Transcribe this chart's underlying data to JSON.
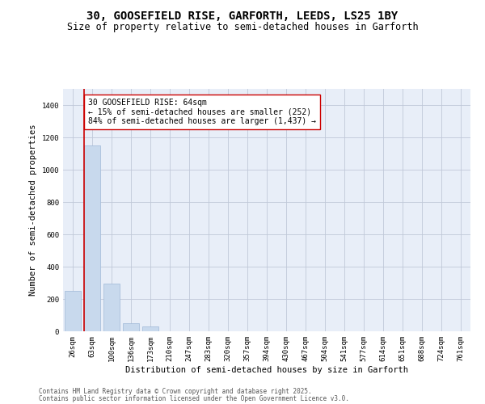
{
  "title_line1": "30, GOOSEFIELD RISE, GARFORTH, LEEDS, LS25 1BY",
  "title_line2": "Size of property relative to semi-detached houses in Garforth",
  "xlabel": "Distribution of semi-detached houses by size in Garforth",
  "ylabel": "Number of semi-detached properties",
  "categories": [
    "26sqm",
    "63sqm",
    "100sqm",
    "136sqm",
    "173sqm",
    "210sqm",
    "247sqm",
    "283sqm",
    "320sqm",
    "357sqm",
    "394sqm",
    "430sqm",
    "467sqm",
    "504sqm",
    "541sqm",
    "577sqm",
    "614sqm",
    "651sqm",
    "688sqm",
    "724sqm",
    "761sqm"
  ],
  "values": [
    252,
    1150,
    295,
    52,
    30,
    0,
    0,
    0,
    0,
    0,
    0,
    0,
    0,
    0,
    0,
    0,
    0,
    0,
    0,
    0,
    0
  ],
  "bar_color": "#c8d9ed",
  "bar_edge_color": "#a0b8d8",
  "bar_width": 0.85,
  "property_bin_index": 1,
  "annotation_text": "30 GOOSEFIELD RISE: 64sqm\n← 15% of semi-detached houses are smaller (252)\n84% of semi-detached houses are larger (1,437) →",
  "vline_color": "#cc0000",
  "annotation_box_edge_color": "#cc0000",
  "annotation_box_face_color": "#ffffff",
  "ylim": [
    0,
    1500
  ],
  "yticks": [
    0,
    200,
    400,
    600,
    800,
    1000,
    1200,
    1400
  ],
  "grid_color": "#c0c8d8",
  "background_color": "#e8eef8",
  "footer_line1": "Contains HM Land Registry data © Crown copyright and database right 2025.",
  "footer_line2": "Contains public sector information licensed under the Open Government Licence v3.0.",
  "title_fontsize": 10,
  "subtitle_fontsize": 8.5,
  "axis_label_fontsize": 7.5,
  "tick_fontsize": 6.5,
  "annotation_fontsize": 7,
  "footer_fontsize": 5.5
}
